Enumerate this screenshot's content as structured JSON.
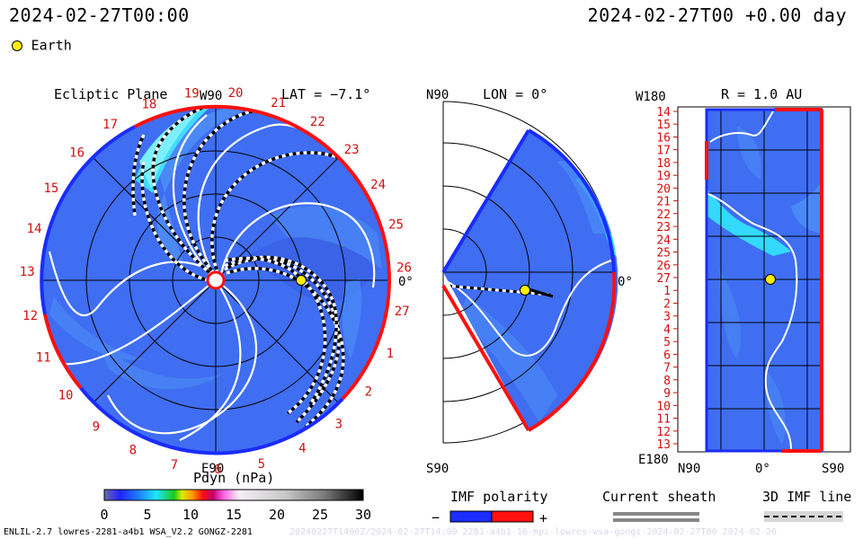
{
  "header": {
    "date_left": "2024-02-27T00:00",
    "date_right": "2024-02-27T00 +0.00 day",
    "legend_label": "Earth"
  },
  "ecliptic": {
    "title": "Ecliptic Plane",
    "lat_label": "LAT = −7.1°",
    "w90": "W90",
    "e90": "E90",
    "zero_label": "0°",
    "car_numbers": [
      "20",
      "21",
      "22",
      "23",
      "24",
      "25",
      "26",
      "27",
      "1",
      "2",
      "3",
      "4",
      "5",
      "6",
      "7",
      "8",
      "9",
      "10",
      "11",
      "12",
      "13",
      "14",
      "15",
      "16",
      "17",
      "18",
      "19"
    ]
  },
  "meridional": {
    "title": "LON = 0°",
    "n90": "N90",
    "s90": "S90",
    "zero_label": "0°"
  },
  "radial": {
    "title": "R = 1.0 AU",
    "w180": "W180",
    "e180": "E180",
    "x_ticks": [
      "N90",
      "0°",
      "S90"
    ],
    "y_labels": [
      "14",
      "15",
      "16",
      "17",
      "18",
      "19",
      "20",
      "21",
      "22",
      "23",
      "24",
      "25",
      "26",
      "27",
      "1",
      "2",
      "3",
      "4",
      "5",
      "6",
      "7",
      "8",
      "9",
      "10",
      "11",
      "12",
      "13"
    ]
  },
  "colorbar": {
    "title": "Pdyn (nPa)",
    "ticks": [
      "0",
      "5",
      "10",
      "15",
      "20",
      "25",
      "30"
    ]
  },
  "imf": {
    "title": "IMF polarity",
    "minus": "−",
    "plus": "+"
  },
  "sheath": {
    "title": "Current sheath"
  },
  "imf3d": {
    "title": "3D IMF line"
  },
  "footer": {
    "left": "ENLIL-2.7 lowres-2281-a4b1 WSA_V2.2 GONGZ-2281",
    "right": "20240227T1400Z/2024-02-27T14:00 2281-a4b1-16-mpi-lowres-wsa-gongz-2024-02-27T00  2024-02-26"
  },
  "colors": {
    "field_blue": "#3f6ef2",
    "cyan": "#33e6ff",
    "positive": "#ff1010",
    "negative": "#1a2cff",
    "earth": "#ffee00",
    "label_red": "#d01010"
  },
  "chart_data": {
    "type": "heatmap",
    "colorbar_range": [
      0,
      30
    ],
    "colorbar_unit": "nPa",
    "earth_position": {
      "radius_au": 1.0,
      "longitude_deg": 0
    },
    "polarity": [
      {
        "name": "−",
        "color": "#1a2cff"
      },
      {
        "name": "+",
        "color": "#ff1010"
      }
    ]
  }
}
